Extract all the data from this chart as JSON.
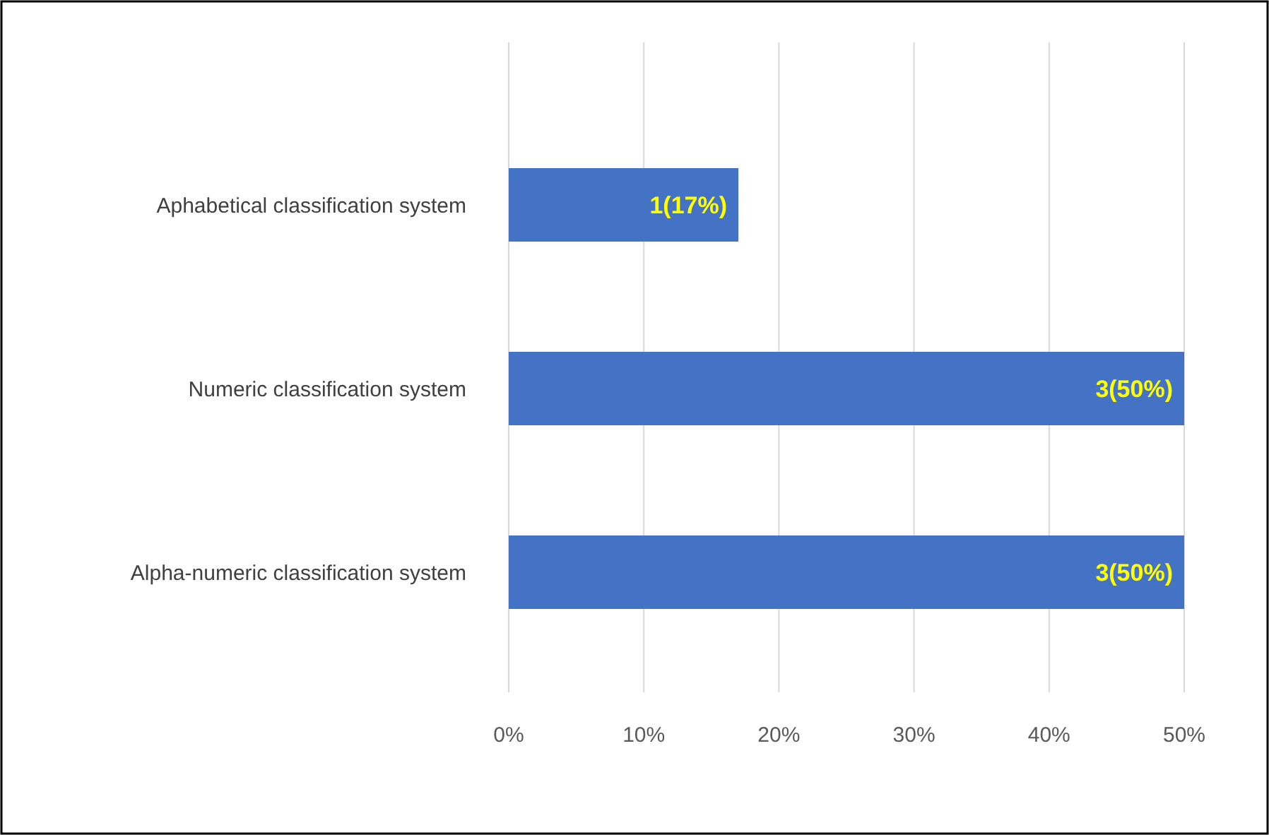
{
  "chart_data": {
    "type": "bar",
    "orientation": "horizontal",
    "categories": [
      "Aphabetical classification system",
      "Numeric classification system",
      "Alpha-numeric classification system"
    ],
    "values": [
      17,
      50,
      50
    ],
    "value_labels": [
      "1(17%)",
      "3(50%)",
      "3(50%)"
    ],
    "color": "#4472c4",
    "xlim": [
      0,
      50
    ],
    "xticks": [
      {
        "value": 0,
        "label": "0%"
      },
      {
        "value": 10,
        "label": "10%"
      },
      {
        "value": 20,
        "label": "20%"
      },
      {
        "value": 30,
        "label": "30%"
      },
      {
        "value": 40,
        "label": "40%"
      },
      {
        "value": 50,
        "label": "50%"
      }
    ],
    "grid": "x"
  }
}
